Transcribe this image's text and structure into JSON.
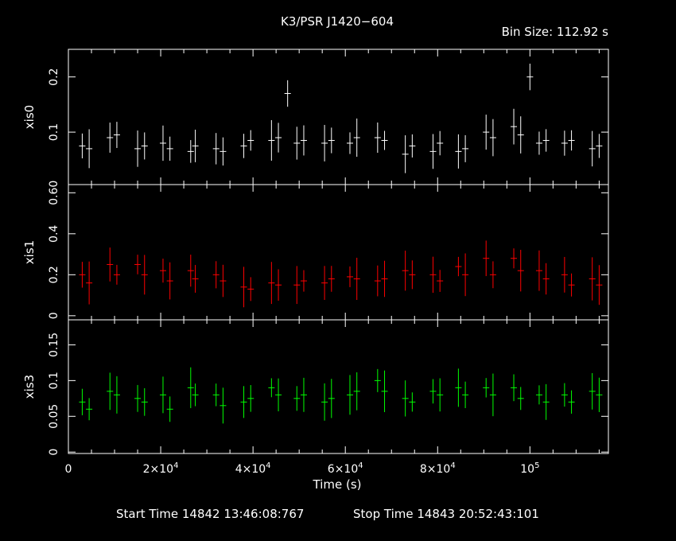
{
  "title": "K3/PSR J1420−604",
  "bin_size_label": "Bin Size:  112.92  s",
  "footer": {
    "start": "Start Time 14842 13:46:08:767",
    "stop": "Stop Time 14843 20:52:43:101"
  },
  "xaxis": {
    "label": "Time (s)",
    "range": [
      0,
      117000
    ],
    "ticks": [
      {
        "value": 0,
        "label": "0"
      },
      {
        "value": 20000,
        "label": "2×10",
        "exp": "4"
      },
      {
        "value": 40000,
        "label": "4×10",
        "exp": "4"
      },
      {
        "value": 60000,
        "label": "6×10",
        "exp": "4"
      },
      {
        "value": 80000,
        "label": "8×10",
        "exp": "4"
      },
      {
        "value": 100000,
        "label": "10",
        "exp": "5"
      }
    ]
  },
  "colors": {
    "background": "#000000",
    "frame": "#ffffff",
    "xis0": "#ffffff",
    "xis1": "#ff0000",
    "xis3": "#00ff00"
  },
  "chart_data": [
    {
      "type": "scatter",
      "name": "xis0",
      "ylabel": "xis0",
      "ylim": [
        0.005,
        0.25
      ],
      "yticks": [
        {
          "value": 0.1,
          "label": "0.1"
        },
        {
          "value": 0.2,
          "label": "0.2"
        }
      ],
      "x": [
        3000,
        4500,
        9000,
        10500,
        15000,
        16500,
        20500,
        22000,
        26500,
        27500,
        32000,
        33500,
        38000,
        39500,
        44000,
        45500,
        47500,
        49500,
        51000,
        55500,
        57000,
        61000,
        62500,
        67000,
        68500,
        73000,
        74500,
        79000,
        80500,
        84500,
        86000,
        90500,
        92000,
        96500,
        98000,
        100000,
        102000,
        103500,
        107500,
        109000,
        113500,
        115000
      ],
      "y": [
        0.075,
        0.07,
        0.09,
        0.095,
        0.07,
        0.075,
        0.08,
        0.07,
        0.065,
        0.075,
        0.07,
        0.065,
        0.075,
        0.085,
        0.085,
        0.09,
        0.17,
        0.08,
        0.085,
        0.08,
        0.085,
        0.08,
        0.09,
        0.09,
        0.085,
        0.06,
        0.075,
        0.065,
        0.08,
        0.065,
        0.07,
        0.1,
        0.09,
        0.11,
        0.095,
        0.2,
        0.08,
        0.085,
        0.08,
        0.085,
        0.07,
        0.075
      ]
    },
    {
      "type": "scatter",
      "name": "xis1",
      "ylabel": "xis1",
      "ylim": [
        -0.02,
        0.64
      ],
      "yticks": [
        {
          "value": 0,
          "label": "0"
        },
        {
          "value": 0.2,
          "label": "0.2"
        },
        {
          "value": 0.4,
          "label": "0.4"
        },
        {
          "value": 0.6,
          "label": "0.60"
        }
      ],
      "x": [
        3000,
        4500,
        9000,
        10500,
        15000,
        16500,
        20500,
        22000,
        26500,
        27500,
        32000,
        33500,
        38000,
        39500,
        44000,
        45500,
        49500,
        51000,
        55500,
        57000,
        61000,
        62500,
        67000,
        68500,
        73000,
        74500,
        79000,
        80500,
        84500,
        86000,
        90500,
        92000,
        96500,
        98000,
        102000,
        103500,
        107500,
        109000,
        113500,
        115000
      ],
      "y": [
        0.2,
        0.16,
        0.25,
        0.2,
        0.25,
        0.2,
        0.22,
        0.17,
        0.22,
        0.18,
        0.2,
        0.17,
        0.14,
        0.13,
        0.16,
        0.15,
        0.15,
        0.17,
        0.16,
        0.18,
        0.19,
        0.18,
        0.17,
        0.18,
        0.22,
        0.2,
        0.2,
        0.17,
        0.24,
        0.2,
        0.28,
        0.2,
        0.28,
        0.22,
        0.22,
        0.18,
        0.2,
        0.15,
        0.18,
        0.15
      ]
    },
    {
      "type": "scatter",
      "name": "xis3",
      "ylabel": "xis3",
      "ylim": [
        -0.002,
        0.185
      ],
      "yticks": [
        {
          "value": 0,
          "label": "0"
        },
        {
          "value": 0.05,
          "label": "0.05"
        },
        {
          "value": 0.1,
          "label": "0.1"
        },
        {
          "value": 0.15,
          "label": "0.15"
        }
      ],
      "x": [
        3000,
        4500,
        9000,
        10500,
        15000,
        16500,
        20500,
        22000,
        26500,
        27500,
        32000,
        33500,
        38000,
        39500,
        44000,
        45500,
        49500,
        51000,
        55500,
        57000,
        61000,
        62500,
        67000,
        68500,
        73000,
        74500,
        79000,
        80500,
        84500,
        86000,
        90500,
        92000,
        96500,
        98000,
        102000,
        103500,
        107500,
        109000,
        113500,
        115000
      ],
      "y": [
        0.07,
        0.06,
        0.085,
        0.08,
        0.075,
        0.07,
        0.08,
        0.06,
        0.09,
        0.08,
        0.08,
        0.065,
        0.07,
        0.075,
        0.09,
        0.08,
        0.075,
        0.08,
        0.07,
        0.075,
        0.08,
        0.085,
        0.1,
        0.085,
        0.075,
        0.07,
        0.085,
        0.08,
        0.09,
        0.08,
        0.09,
        0.08,
        0.09,
        0.075,
        0.08,
        0.07,
        0.08,
        0.07,
        0.085,
        0.08
      ]
    }
  ]
}
